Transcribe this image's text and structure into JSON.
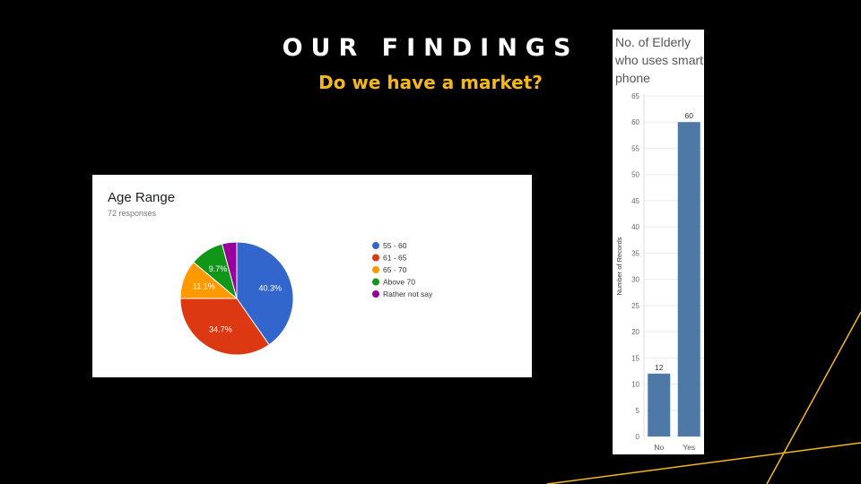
{
  "slide": {
    "title": "OUR FINDINGS",
    "subtitle": "Do we have a market?",
    "accent": "#f5b81a",
    "background": "#000000"
  },
  "age_card": {
    "title": "Age Range",
    "responses": "72 responses"
  },
  "bar_card": {
    "title": "No. of Elderly who uses smart phone"
  },
  "chart_data": [
    {
      "type": "pie",
      "title": "Age Range",
      "slices": [
        {
          "label": "55 - 60",
          "value": 40.3,
          "display": "40.3%",
          "color": "#3366cc"
        },
        {
          "label": "61 - 65",
          "value": 34.7,
          "display": "34.7%",
          "color": "#dc3912"
        },
        {
          "label": "65 - 70",
          "value": 11.1,
          "display": "11.1%",
          "color": "#ff9900"
        },
        {
          "label": "Above 70",
          "value": 9.7,
          "display": "9.7%",
          "color": "#109618"
        },
        {
          "label": "Rather not say",
          "value": 4.2,
          "display": "",
          "color": "#990099"
        }
      ],
      "legend_position": "right"
    },
    {
      "type": "bar",
      "title": "No. of Elderly who uses smart phone",
      "categories": [
        "No",
        "Yes"
      ],
      "values": [
        12,
        60
      ],
      "ylabel": "Number of Records",
      "ylim": [
        0,
        65
      ],
      "yticks": [
        0,
        5,
        10,
        15,
        20,
        25,
        30,
        35,
        40,
        45,
        50,
        55,
        60,
        65
      ],
      "bar_color": "#4e79a7",
      "grid": true
    }
  ]
}
